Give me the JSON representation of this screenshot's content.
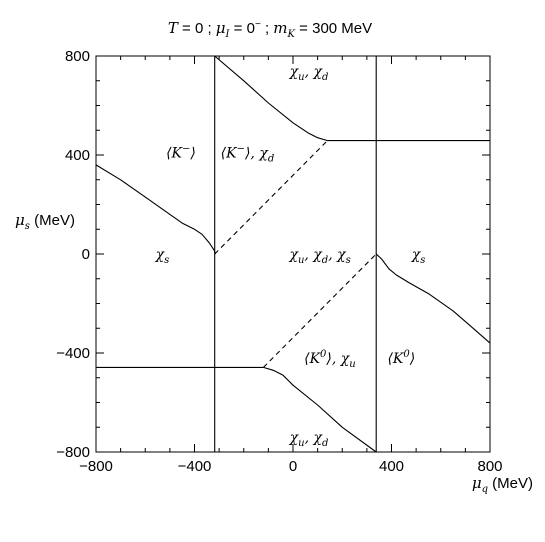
{
  "chart_data": {
    "type": "line",
    "title": "T = 0  ;  μ_I = 0⁻  ;  m_K = 300 MeV",
    "title_parts": {
      "t_sym": "T",
      "t_val": " = 0   ;   ",
      "mu_sym": "μ",
      "mu_sub": "I",
      "mu_val": " = 0",
      "mu_sup": "−",
      "sep": "   ;   ",
      "m_sym": "m",
      "m_sub": "K",
      "m_val": " = 300 MeV"
    },
    "xlabel": {
      "sym": "μ",
      "sub": "q",
      "unit": " (MeV)"
    },
    "ylabel": {
      "sym": "μ",
      "sub": "s",
      "unit": " (MeV)"
    },
    "xlim": [
      -800,
      800
    ],
    "ylim": [
      -800,
      800
    ],
    "grid": false,
    "xticks": [
      {
        "v": -800,
        "label": "−800"
      },
      {
        "v": -400,
        "label": "−400"
      },
      {
        "v": 0,
        "label": "0"
      },
      {
        "v": 400,
        "label": "400"
      },
      {
        "v": 800,
        "label": "800"
      }
    ],
    "yticks": [
      {
        "v": -800,
        "label": "−800"
      },
      {
        "v": -400,
        "label": "−400"
      },
      {
        "v": 0,
        "label": "0"
      },
      {
        "v": 400,
        "label": "400"
      },
      {
        "v": 800,
        "label": "800"
      }
    ],
    "minor_step": 100,
    "series": [
      {
        "style": "solid",
        "x": [
          -800,
          -700,
          -600,
          -500,
          -450,
          -400,
          -370,
          -340,
          -320,
          -315
        ],
        "y": [
          360,
          300,
          230,
          160,
          125,
          100,
          80,
          45,
          15,
          0
        ]
      },
      {
        "style": "solid",
        "x": [
          -318,
          -318
        ],
        "y": [
          -800,
          800
        ]
      },
      {
        "style": "solid",
        "x": [
          -318,
          -200,
          -100,
          0,
          60,
          100,
          140
        ],
        "y": [
          800,
          700,
          610,
          530,
          490,
          470,
          458
        ]
      },
      {
        "style": "solid",
        "x": [
          140,
          800
        ],
        "y": [
          458,
          458
        ]
      },
      {
        "style": "dashed",
        "x": [
          -318,
          140
        ],
        "y": [
          0,
          458
        ]
      },
      {
        "style": "solid",
        "x": [
          338,
          338
        ],
        "y": [
          -800,
          800
        ]
      },
      {
        "style": "solid",
        "x": [
          338,
          360,
          390,
          420,
          470,
          550,
          650,
          720,
          800
        ],
        "y": [
          0,
          -20,
          -60,
          -85,
          -115,
          -160,
          -230,
          -290,
          -360
        ]
      },
      {
        "style": "solid",
        "x": [
          -800,
          -120
        ],
        "y": [
          -458,
          -458
        ]
      },
      {
        "style": "solid",
        "x": [
          -120,
          -80,
          -40,
          0,
          100,
          200,
          338
        ],
        "y": [
          -458,
          -470,
          -490,
          -530,
          -610,
          -700,
          -800
        ]
      },
      {
        "style": "dashed",
        "x": [
          -120,
          338
        ],
        "y": [
          -458,
          0
        ]
      }
    ],
    "annotations": [
      {
        "x": -530,
        "y": 0,
        "segments": [
          {
            "t": "χ",
            "sub": "s"
          }
        ]
      },
      {
        "x": 510,
        "y": 0,
        "segments": [
          {
            "t": "χ",
            "sub": "s"
          }
        ]
      },
      {
        "x": 110,
        "y": 0,
        "segments": [
          {
            "t": "χ",
            "sub": "u"
          },
          {
            "t": ", "
          },
          {
            "t": "χ",
            "sub": "d"
          },
          {
            "t": ", "
          },
          {
            "t": "χ",
            "sub": "s"
          }
        ]
      },
      {
        "x": 65,
        "y": 740,
        "segments": [
          {
            "t": "χ",
            "sub": "u"
          },
          {
            "t": ", "
          },
          {
            "t": "χ",
            "sub": "d"
          }
        ]
      },
      {
        "x": 65,
        "y": -740,
        "segments": [
          {
            "t": "χ",
            "sub": "u"
          },
          {
            "t": ", "
          },
          {
            "t": "χ",
            "sub": "d"
          }
        ]
      },
      {
        "x": -455,
        "y": 410,
        "segments": [
          {
            "t": "⟨K"
          },
          {
            "t": "",
            "sup": "−"
          },
          {
            "t": "⟩"
          }
        ]
      },
      {
        "x": -185,
        "y": 410,
        "segments": [
          {
            "t": "⟨K"
          },
          {
            "t": "",
            "sup": "−"
          },
          {
            "t": "⟩, "
          },
          {
            "t": "χ",
            "sub": "d"
          }
        ]
      },
      {
        "x": 150,
        "y": -420,
        "segments": [
          {
            "t": "⟨K"
          },
          {
            "t": "",
            "sup": "0"
          },
          {
            "t": "⟩, "
          },
          {
            "t": "χ",
            "sub": "u"
          }
        ]
      },
      {
        "x": 440,
        "y": -420,
        "segments": [
          {
            "t": "⟨K"
          },
          {
            "t": "",
            "sup": "0"
          },
          {
            "t": "⟩"
          }
        ]
      }
    ]
  }
}
